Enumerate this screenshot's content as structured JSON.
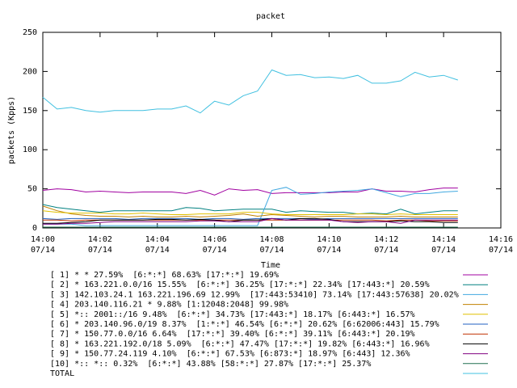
{
  "chart_data": {
    "type": "line",
    "title": "packet",
    "xlabel": "Time",
    "ylabel": "packets (Kpps)",
    "x": [
      "14:00:00",
      "14:00:30",
      "14:01:00",
      "14:01:30",
      "14:02:00",
      "14:02:30",
      "14:03:00",
      "14:03:30",
      "14:04:00",
      "14:04:30",
      "14:05:00",
      "14:05:30",
      "14:06:00",
      "14:06:30",
      "14:07:00",
      "14:07:30",
      "14:08:00",
      "14:08:30",
      "14:09:00",
      "14:09:30",
      "14:10:00",
      "14:10:30",
      "14:11:00",
      "14:11:30",
      "14:12:00",
      "14:12:30",
      "14:13:00",
      "14:13:30",
      "14:14:00",
      "14:14:30"
    ],
    "xlim": [
      "14:00:00",
      "14:16:00"
    ],
    "xticks": [
      {
        "value": "14:00:00",
        "label": [
          "14:00",
          "07/14"
        ]
      },
      {
        "value": "14:02:00",
        "label": [
          "14:02",
          "07/14"
        ]
      },
      {
        "value": "14:04:00",
        "label": [
          "14:04",
          "07/14"
        ]
      },
      {
        "value": "14:06:00",
        "label": [
          "14:06",
          "07/14"
        ]
      },
      {
        "value": "14:08:00",
        "label": [
          "14:08",
          "07/14"
        ]
      },
      {
        "value": "14:10:00",
        "label": [
          "14:10",
          "07/14"
        ]
      },
      {
        "value": "14:12:00",
        "label": [
          "14:12",
          "07/14"
        ]
      },
      {
        "value": "14:14:00",
        "label": [
          "14:14",
          "07/14"
        ]
      },
      {
        "value": "14:16:00",
        "label": [
          "14:16",
          "07/14"
        ]
      }
    ],
    "ylim": [
      0,
      250
    ],
    "yticks": [
      0,
      50,
      100,
      150,
      200,
      250
    ],
    "grid": false,
    "series": [
      {
        "name": "[ 1] * * 27.59%  [6:*:*] 68.63% [17:*:*] 19.69%",
        "color": "#a000a0",
        "values": [
          48,
          50,
          49,
          46,
          47,
          46,
          45,
          46,
          46,
          46,
          44,
          48,
          42,
          50,
          48,
          49,
          44,
          45,
          45,
          45,
          45,
          46,
          46,
          50,
          47,
          47,
          46,
          49,
          51,
          51
        ]
      },
      {
        "name": "[ 2] * 163.221.0.0/16 15.55%  [6:*:*] 36.25% [17:*:*] 22.34% [17:443:*] 20.59%",
        "color": "#008080",
        "values": [
          30,
          26,
          24,
          22,
          20,
          22,
          22,
          22,
          22,
          22,
          26,
          25,
          22,
          23,
          24,
          24,
          24,
          20,
          22,
          21,
          20,
          20,
          18,
          19,
          18,
          24,
          18,
          20,
          22,
          22
        ]
      },
      {
        "name": "[ 3] 142.103.24.1 163.221.196.69 12.99%  [17:443:53410] 73.14% [17:443:57638] 20.02%",
        "color": "#40a8e0",
        "values": [
          5,
          5,
          5,
          3,
          3,
          3,
          3,
          3,
          3,
          3,
          3,
          3,
          3,
          3,
          3,
          3,
          48,
          52,
          43,
          44,
          46,
          47,
          48,
          50,
          45,
          40,
          44,
          44,
          46,
          47
        ]
      },
      {
        "name": "[ 4] 203.140.116.21 * 9.88% [1:12048:2048] 99.98%",
        "color": "#c08000",
        "values": [
          28,
          22,
          18,
          16,
          15,
          15,
          14,
          15,
          14,
          14,
          15,
          14,
          15,
          16,
          18,
          15,
          17,
          16,
          15,
          14,
          15,
          15,
          14,
          14,
          14,
          15,
          14,
          14,
          14,
          14
        ]
      },
      {
        "name": "[ 5] *:: 2001::/16 9.48%  [6:*:*] 34.73% [17:443:*] 18.17% [6:443:*] 16.57%",
        "color": "#e0c000",
        "values": [
          22,
          20,
          19,
          19,
          19,
          18,
          18,
          19,
          18,
          17,
          17,
          18,
          18,
          18,
          20,
          20,
          18,
          17,
          17,
          17,
          17,
          17,
          18,
          18,
          17,
          18,
          17,
          17,
          17,
          17
        ]
      },
      {
        "name": "[ 6] * 203.140.96.0/19 8.37%  [1:*:*] 46.54% [6:*:*] 20.62% [6:62006:443] 15.79%",
        "color": "#2060c0",
        "values": [
          12,
          11,
          12,
          12,
          12,
          12,
          11,
          12,
          12,
          12,
          12,
          11,
          12,
          12,
          11,
          12,
          12,
          12,
          12,
          11,
          12,
          12,
          12,
          12,
          12,
          12,
          12,
          12,
          12,
          12
        ]
      },
      {
        "name": "[ 7] * 150.77.0.0/16 6.64%  [17:*:*] 39.40% [6:*:*] 39.11% [6:443:*] 20.19%",
        "color": "#c03000",
        "values": [
          10,
          10,
          9,
          10,
          10,
          10,
          10,
          10,
          10,
          10,
          10,
          10,
          10,
          10,
          10,
          10,
          10,
          10,
          10,
          10,
          10,
          10,
          10,
          10,
          9,
          10,
          10,
          9,
          9,
          9
        ]
      },
      {
        "name": "[ 8] * 163.221.192.0/18 5.09%  [6:*:*] 47.47% [17:*:*] 19.82% [6:443:*] 16.96%",
        "color": "#000000",
        "values": [
          6,
          6,
          7,
          8,
          10,
          10,
          10,
          10,
          11,
          11,
          10,
          11,
          10,
          8,
          10,
          10,
          12,
          10,
          12,
          12,
          11,
          8,
          8,
          8,
          8,
          9,
          8,
          8,
          7,
          7
        ]
      },
      {
        "name": "[ 9] * 150.77.24.119 4.10%  [6:*:*] 67.53% [6:873:*] 18.97% [6:443] 12.36%",
        "color": "#800080",
        "values": [
          5,
          5,
          6,
          6,
          7,
          8,
          8,
          8,
          8,
          8,
          8,
          9,
          9,
          8,
          8,
          8,
          12,
          10,
          10,
          10,
          10,
          8,
          7,
          8,
          8,
          6,
          10,
          10,
          10,
          10
        ]
      },
      {
        "name": "[10] *:: *:: 0.32%  [6:*:*] 43.88% [58:*:*] 27.87% [17:*:*] 25.37%",
        "color": "#207050",
        "values": [
          1,
          1,
          1,
          1,
          1,
          1,
          1,
          1,
          1,
          1,
          1,
          1,
          1,
          1,
          1,
          1,
          1,
          1,
          1,
          1,
          1,
          1,
          1,
          1,
          1,
          1,
          1,
          1,
          1,
          1
        ]
      },
      {
        "name": "TOTAL",
        "color": "#40c0e0",
        "values": [
          167,
          152,
          154,
          150,
          148,
          150,
          150,
          150,
          152,
          152,
          156,
          147,
          162,
          157,
          169,
          175,
          202,
          195,
          196,
          192,
          193,
          191,
          195,
          185,
          185,
          188,
          199,
          193,
          195,
          189
        ]
      }
    ]
  }
}
